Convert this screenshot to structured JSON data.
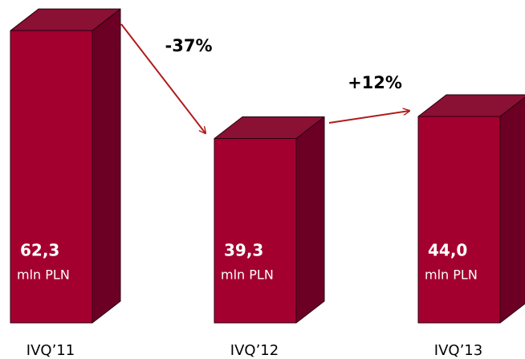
{
  "chart_data": {
    "type": "bar3d",
    "categories": [
      "IVQ’11",
      "IVQ’12",
      "IVQ’13"
    ],
    "values": [
      62.3,
      39.3,
      44.0
    ],
    "value_labels": [
      "62,3",
      "39,3",
      "44,0"
    ],
    "unit": "mln PLN",
    "annotations": [
      "-37%",
      "+12%"
    ],
    "color": "#a4002f"
  }
}
